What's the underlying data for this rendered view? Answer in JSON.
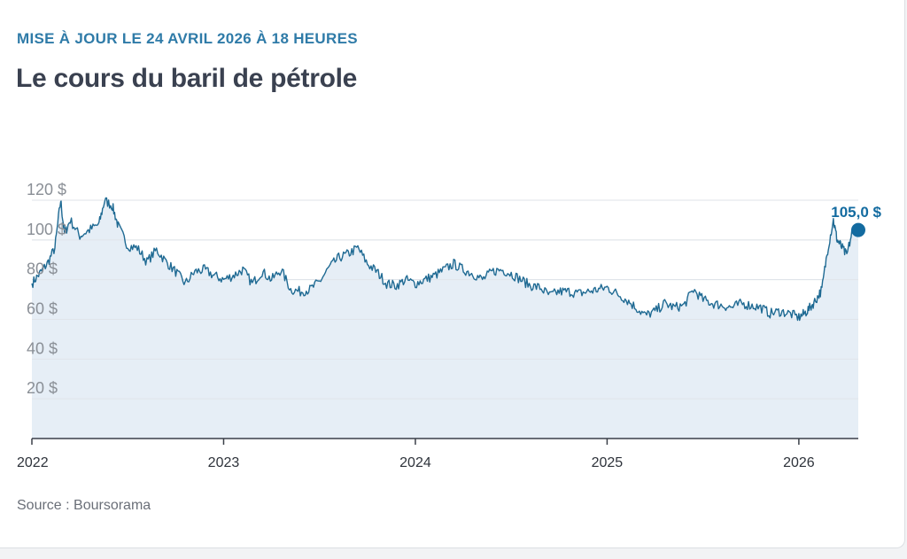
{
  "header": {
    "update": "MISE À JOUR LE 24 AVRIL 2026 À 18 HEURES",
    "title": "Le cours du baril de pétrole"
  },
  "footer": {
    "source": "Source : Boursorama"
  },
  "colors": {
    "line": "#1f6a93",
    "area": "#e6eef6",
    "grid": "#dfe3e8",
    "axis": "#3a3f48",
    "label": "#8a8f96",
    "marker": "#136ba0"
  },
  "chart_data": {
    "type": "area",
    "title": "Le cours du baril de pétrole",
    "xlabel": "",
    "ylabel": "",
    "ylim": [
      0,
      120
    ],
    "xlim": [
      2022.0,
      2026.31
    ],
    "y_ticks": [
      {
        "value": 20,
        "label": "20 $"
      },
      {
        "value": 40,
        "label": "40 $"
      },
      {
        "value": 60,
        "label": "60 $"
      },
      {
        "value": 80,
        "label": "80 $"
      },
      {
        "value": 100,
        "label": "100 $"
      },
      {
        "value": 120,
        "label": "120 $"
      }
    ],
    "x_ticks": [
      {
        "value": 2022,
        "label": "2022"
      },
      {
        "value": 2023,
        "label": "2023"
      },
      {
        "value": 2024,
        "label": "2024"
      },
      {
        "value": 2025,
        "label": "2025"
      },
      {
        "value": 2026,
        "label": "2026"
      }
    ],
    "grid": true,
    "series": [
      {
        "values_x": [
          2022.0,
          2022.04,
          2022.08,
          2022.12,
          2022.15,
          2022.17,
          2022.2,
          2022.25,
          2022.3,
          2022.35,
          2022.38,
          2022.42,
          2022.45,
          2022.5,
          2022.55,
          2022.6,
          2022.65,
          2022.7,
          2022.75,
          2022.8,
          2022.85,
          2022.9,
          2022.95,
          2023.0,
          2023.05,
          2023.1,
          2023.15,
          2023.2,
          2023.25,
          2023.3,
          2023.35,
          2023.4,
          2023.45,
          2023.5,
          2023.55,
          2023.6,
          2023.65,
          2023.7,
          2023.75,
          2023.8,
          2023.85,
          2023.9,
          2023.95,
          2024.0,
          2024.05,
          2024.1,
          2024.15,
          2024.2,
          2024.25,
          2024.3,
          2024.35,
          2024.4,
          2024.45,
          2024.5,
          2024.55,
          2024.6,
          2024.65,
          2024.7,
          2024.75,
          2024.8,
          2024.85,
          2024.9,
          2024.95,
          2025.0,
          2025.05,
          2025.1,
          2025.15,
          2025.2,
          2025.25,
          2025.3,
          2025.35,
          2025.4,
          2025.45,
          2025.5,
          2025.55,
          2025.6,
          2025.65,
          2025.7,
          2025.75,
          2025.8,
          2025.85,
          2025.9,
          2025.95,
          2026.0,
          2026.03,
          2026.06,
          2026.09,
          2026.12,
          2026.15,
          2026.18,
          2026.2,
          2026.22,
          2026.25,
          2026.28,
          2026.31
        ],
        "values_y": [
          78,
          83,
          88,
          96,
          120,
          103,
          110,
          102,
          105,
          108,
          120,
          117,
          107,
          97,
          96,
          89,
          95,
          89,
          84,
          78,
          84,
          85,
          82,
          80,
          82,
          85,
          78,
          84,
          80,
          85,
          75,
          74,
          75,
          79,
          86,
          91,
          93,
          96,
          88,
          84,
          78,
          77,
          80,
          78,
          80,
          82,
          85,
          88,
          85,
          83,
          80,
          84,
          85,
          83,
          80,
          77,
          76,
          72,
          74,
          74,
          73,
          74,
          75,
          76,
          73,
          70,
          66,
          62,
          64,
          68,
          66,
          67,
          75,
          70,
          68,
          67,
          66,
          68,
          67,
          66,
          63,
          64,
          63,
          61,
          63,
          66,
          70,
          75,
          95,
          110,
          100,
          97,
          92,
          105,
          105
        ]
      }
    ],
    "annotation": "105,0 $"
  }
}
